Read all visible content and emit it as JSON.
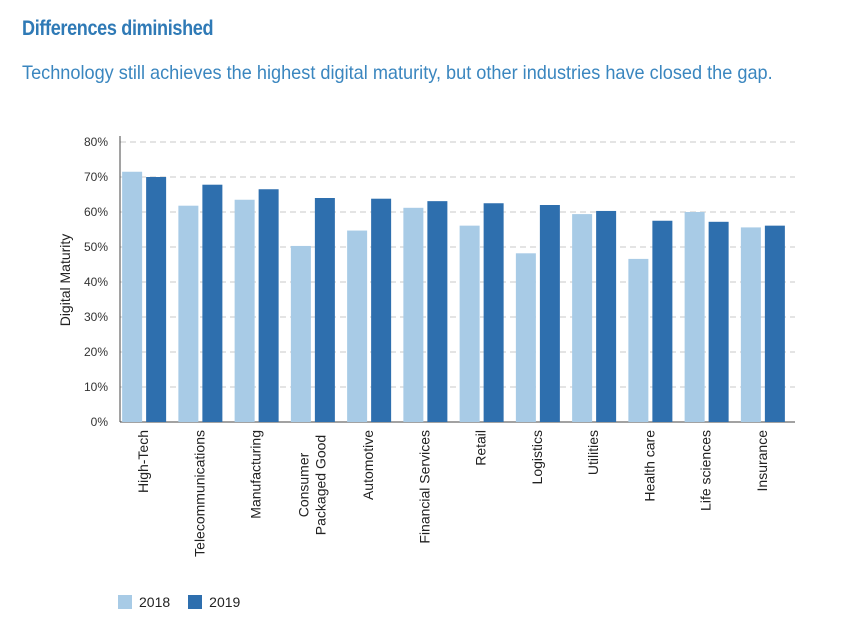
{
  "title": "Differences diminished",
  "subtitle": "Technology still achieves the highest digital maturity, but other industries have closed the gap.",
  "colors": {
    "s2018": "#a8cbe6",
    "s2019": "#2e6fae",
    "grid": "#c8c8c8",
    "axis": "#444444"
  },
  "chart_data": {
    "type": "bar",
    "ylabel": "Digital Maturity",
    "xlabel": "",
    "ylim": [
      0,
      80
    ],
    "yticks": [
      "0%",
      "10%",
      "20%",
      "30%",
      "40%",
      "50%",
      "60%",
      "70%",
      "80%"
    ],
    "grid": true,
    "legend_position": "bottom-left",
    "categories": [
      [
        "High-Tech"
      ],
      [
        "Telecommunications"
      ],
      [
        "Manufacturing"
      ],
      [
        "Consumer",
        "Packaged Good"
      ],
      [
        "Automotive"
      ],
      [
        "Financial Services"
      ],
      [
        "Retail"
      ],
      [
        "Logistics"
      ],
      [
        "Utilities"
      ],
      [
        "Health care"
      ],
      [
        "Life sciences"
      ],
      [
        "Insurance"
      ]
    ],
    "series": [
      {
        "name": "2018",
        "values": [
          71.5,
          61.8,
          63.5,
          50.3,
          54.7,
          61.2,
          56.1,
          48.2,
          59.4,
          46.6,
          60.0,
          55.6
        ]
      },
      {
        "name": "2019",
        "values": [
          70.0,
          67.8,
          66.5,
          64.0,
          63.8,
          63.1,
          62.5,
          62.0,
          60.3,
          57.5,
          57.2,
          56.1
        ]
      }
    ]
  }
}
